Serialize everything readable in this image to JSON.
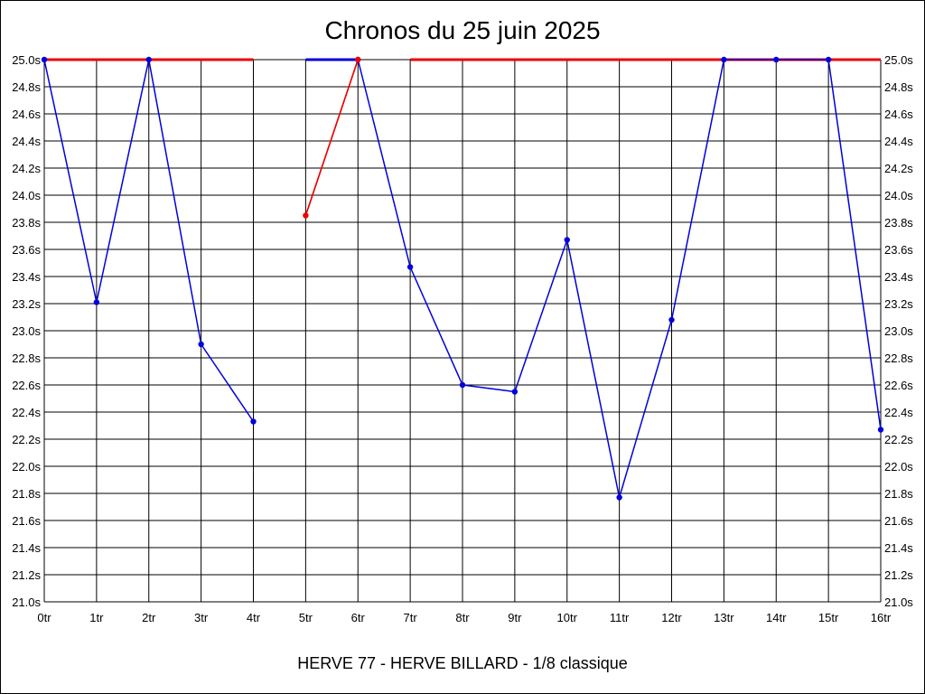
{
  "chart_data": {
    "type": "line",
    "title": "Chronos du 25 juin 2025",
    "footer": "HERVE 77 - HERVE BILLARD - 1/8 classique",
    "ylim": [
      21.0,
      25.0
    ],
    "y_ticks": [
      "21.0s",
      "21.2s",
      "21.4s",
      "21.6s",
      "21.8s",
      "22.0s",
      "22.2s",
      "22.4s",
      "22.6s",
      "22.8s",
      "23.0s",
      "23.2s",
      "23.4s",
      "23.6s",
      "23.8s",
      "24.0s",
      "24.2s",
      "24.4s",
      "24.6s",
      "24.8s",
      "25.0s"
    ],
    "categories": [
      "0tr",
      "1tr",
      "2tr",
      "3tr",
      "4tr",
      "5tr",
      "6tr",
      "7tr",
      "8tr",
      "9tr",
      "10tr",
      "11tr",
      "12tr",
      "13tr",
      "14tr",
      "15tr",
      "16tr"
    ],
    "grid": true,
    "colors": {
      "blue": "#0000dd",
      "red": "#ee0000"
    },
    "series": [
      {
        "color": "blue",
        "values": [
          25.0,
          23.21,
          25.0,
          22.9,
          22.33,
          null,
          25.0,
          23.47,
          22.6,
          22.55,
          23.67,
          21.77,
          23.08,
          25.0,
          25.0,
          25.0,
          22.27
        ]
      },
      {
        "color": "red",
        "values": [
          null,
          null,
          null,
          null,
          null,
          23.85,
          25.0,
          null,
          null,
          null,
          null,
          null,
          null,
          null,
          null,
          null,
          null
        ]
      }
    ],
    "limit_segments": [
      {
        "color": "red",
        "from": 0,
        "to": 4
      },
      {
        "color": "blue",
        "from": 5,
        "to": 6
      },
      {
        "color": "red",
        "from": 7,
        "to": 16
      }
    ]
  }
}
